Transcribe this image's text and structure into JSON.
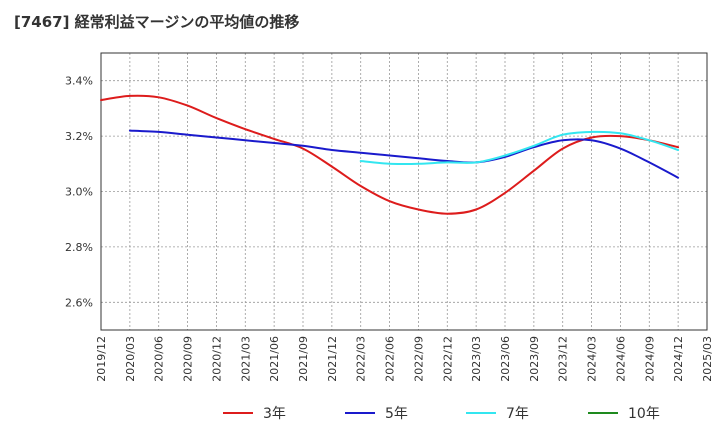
{
  "chart_data": {
    "type": "line",
    "title": "[7467]  経常利益マージンの平均値の推移",
    "xlabel": "",
    "ylabel": "",
    "ylim": [
      2.5,
      3.5
    ],
    "yticks": [
      2.6,
      2.8,
      3.0,
      3.2,
      3.4
    ],
    "ytick_labels": [
      "2.6%",
      "2.8%",
      "3.0%",
      "3.2%",
      "3.4%"
    ],
    "x_categories": [
      "2019/12",
      "2020/03",
      "2020/06",
      "2020/09",
      "2020/12",
      "2021/03",
      "2021/06",
      "2021/09",
      "2021/12",
      "2022/03",
      "2022/06",
      "2022/09",
      "2022/12",
      "2023/03",
      "2023/06",
      "2023/09",
      "2023/12",
      "2024/03",
      "2024/06",
      "2024/09",
      "2024/12",
      "2025/03"
    ],
    "grid": true,
    "legend_position": "bottom",
    "series": [
      {
        "name": "3年",
        "color": "#dd1c1c",
        "values": [
          3.33,
          3.345,
          3.34,
          3.31,
          3.265,
          3.225,
          3.19,
          3.155,
          3.09,
          3.02,
          2.965,
          2.935,
          2.92,
          2.935,
          2.995,
          3.075,
          3.155,
          3.195,
          3.2,
          3.185,
          3.16,
          null
        ]
      },
      {
        "name": "5年",
        "color": "#1a1acc",
        "values": [
          null,
          3.22,
          3.215,
          3.205,
          3.195,
          3.185,
          3.175,
          3.165,
          3.15,
          3.14,
          3.13,
          3.12,
          3.11,
          3.105,
          3.125,
          3.16,
          3.185,
          3.185,
          3.155,
          3.105,
          3.05,
          null
        ]
      },
      {
        "name": "7年",
        "color": "#33e6f0",
        "values": [
          null,
          null,
          null,
          null,
          null,
          null,
          null,
          null,
          null,
          3.11,
          3.1,
          3.1,
          3.105,
          3.105,
          3.13,
          3.165,
          3.205,
          3.215,
          3.21,
          3.185,
          3.15,
          null
        ]
      },
      {
        "name": "10年",
        "color": "#1e8a1e",
        "values": []
      }
    ]
  }
}
